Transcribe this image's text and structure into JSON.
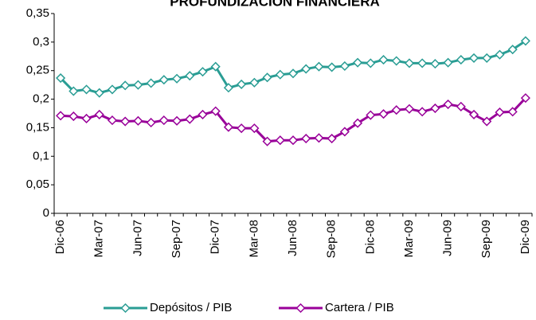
{
  "chart_data": {
    "type": "line",
    "title": "PROFUNDIZACIÓN FINANCIERA",
    "categories": [
      "Dic-06",
      null,
      null,
      "Mar-07",
      null,
      null,
      "Jun-07",
      null,
      null,
      "Sep-07",
      null,
      null,
      "Dic-07",
      null,
      null,
      "Mar-08",
      null,
      null,
      "Jun-08",
      null,
      null,
      "Sep-08",
      null,
      null,
      "Dic-08",
      null,
      null,
      "Mar-09",
      null,
      null,
      "Jun-09",
      null,
      null,
      "Sep-09",
      null,
      null,
      "Dic-09"
    ],
    "series": [
      {
        "name": "Depósitos / PIB",
        "color": "#2a9d94",
        "values": [
          0.237,
          0.214,
          0.217,
          0.211,
          0.217,
          0.224,
          0.225,
          0.228,
          0.234,
          0.236,
          0.241,
          0.248,
          0.257,
          0.22,
          0.226,
          0.229,
          0.238,
          0.243,
          0.245,
          0.253,
          0.257,
          0.256,
          0.258,
          0.264,
          0.263,
          0.269,
          0.267,
          0.263,
          0.263,
          0.262,
          0.264,
          0.269,
          0.272,
          0.272,
          0.278,
          0.287,
          0.302
        ]
      },
      {
        "name": "Cartera / PIB",
        "color": "#990099",
        "values": [
          0.171,
          0.17,
          0.166,
          0.173,
          0.163,
          0.161,
          0.162,
          0.159,
          0.163,
          0.162,
          0.165,
          0.173,
          0.179,
          0.151,
          0.149,
          0.149,
          0.126,
          0.128,
          0.128,
          0.131,
          0.132,
          0.131,
          0.143,
          0.158,
          0.172,
          0.174,
          0.181,
          0.183,
          0.178,
          0.184,
          0.191,
          0.187,
          0.173,
          0.161,
          0.177,
          0.178,
          0.202
        ]
      }
    ],
    "ylim": [
      0,
      0.35
    ],
    "yticks": [
      {
        "value": 0,
        "label": "0"
      },
      {
        "value": 0.05,
        "label": "0,05"
      },
      {
        "value": 0.1,
        "label": "0,1"
      },
      {
        "value": 0.15,
        "label": "0,15"
      },
      {
        "value": 0.2,
        "label": "0,2"
      },
      {
        "value": 0.25,
        "label": "0,25"
      },
      {
        "value": 0.3,
        "label": "0,3"
      },
      {
        "value": 0.35,
        "label": "0,35"
      }
    ],
    "grid": false,
    "legend": "bottom"
  }
}
